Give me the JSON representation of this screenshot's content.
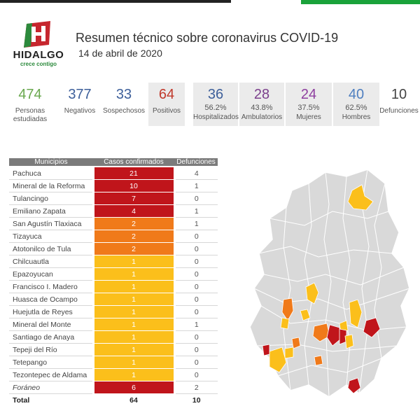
{
  "logo": {
    "name": "HIDALGO",
    "tagline": "crece contigo"
  },
  "header": {
    "title": "Resumen técnico sobre coronavirus COVID-19",
    "date": "14 de abril de 2020"
  },
  "stats": [
    {
      "value": "474",
      "pct": "",
      "label": "Personas estudiadas",
      "color": "#6aa84f"
    },
    {
      "value": "377",
      "pct": "",
      "label": "Negativos",
      "color": "#3d5f9a"
    },
    {
      "value": "33",
      "pct": "",
      "label": "Sospechosos",
      "color": "#3d5f9a"
    },
    {
      "value": "64",
      "pct": "",
      "label": "Positivos",
      "color": "#c0392b"
    },
    {
      "value": "36",
      "pct": "56.2%",
      "label": "Hospitalizados",
      "color": "#3d5f9a"
    },
    {
      "value": "28",
      "pct": "43.8%",
      "label": "Ambulatorios",
      "color": "#7b3f8c"
    },
    {
      "value": "24",
      "pct": "37.5%",
      "label": "Mujeres",
      "color": "#8e3f9f"
    },
    {
      "value": "40",
      "pct": "62.5%",
      "label": "Hombres",
      "color": "#4f7fc0"
    },
    {
      "value": "10",
      "pct": "",
      "label": "Defunciones",
      "color": "#444444"
    }
  ],
  "table": {
    "headers": [
      "Municipios",
      "Casos confirmados",
      "Defunciones"
    ],
    "rows": [
      {
        "name": "Pachuca",
        "cases": "21",
        "deaths": "4",
        "color": "#c0151b"
      },
      {
        "name": "Mineral de la Reforma",
        "cases": "10",
        "deaths": "1",
        "color": "#c0151b"
      },
      {
        "name": "Tulancingo",
        "cases": "7",
        "deaths": "0",
        "color": "#c0151b"
      },
      {
        "name": "Emiliano Zapata",
        "cases": "4",
        "deaths": "1",
        "color": "#c0151b"
      },
      {
        "name": "San Agustín Tlaxiaca",
        "cases": "2",
        "deaths": "1",
        "color": "#f07a1a"
      },
      {
        "name": "Tizayuca",
        "cases": "2",
        "deaths": "0",
        "color": "#f07a1a"
      },
      {
        "name": "Atotonilco de Tula",
        "cases": "2",
        "deaths": "0",
        "color": "#f07a1a"
      },
      {
        "name": "Chilcuautla",
        "cases": "1",
        "deaths": "0",
        "color": "#fbbf1b"
      },
      {
        "name": "Epazoyucan",
        "cases": "1",
        "deaths": "0",
        "color": "#fbbf1b"
      },
      {
        "name": "Francisco I. Madero",
        "cases": "1",
        "deaths": "0",
        "color": "#fbbf1b"
      },
      {
        "name": "Huasca de Ocampo",
        "cases": "1",
        "deaths": "0",
        "color": "#fbbf1b"
      },
      {
        "name": "Huejutla de Reyes",
        "cases": "1",
        "deaths": "0",
        "color": "#fbbf1b"
      },
      {
        "name": "Mineral del Monte",
        "cases": "1",
        "deaths": "1",
        "color": "#fbbf1b"
      },
      {
        "name": "Santiago de Anaya",
        "cases": "1",
        "deaths": "0",
        "color": "#fbbf1b"
      },
      {
        "name": "Tepeji del Río",
        "cases": "1",
        "deaths": "0",
        "color": "#fbbf1b"
      },
      {
        "name": "Tetepango",
        "cases": "1",
        "deaths": "0",
        "color": "#fbbf1b"
      },
      {
        "name": "Tezontepec de Aldama",
        "cases": "1",
        "deaths": "0",
        "color": "#fbbf1b"
      },
      {
        "name": "Foráneo",
        "cases": "6",
        "deaths": "2",
        "color": "#c0151b"
      }
    ],
    "total": {
      "label": "Total",
      "cases": "64",
      "deaths": "10"
    }
  },
  "map": {
    "base_color": "#d9d9d9",
    "border_color": "#ffffff"
  }
}
